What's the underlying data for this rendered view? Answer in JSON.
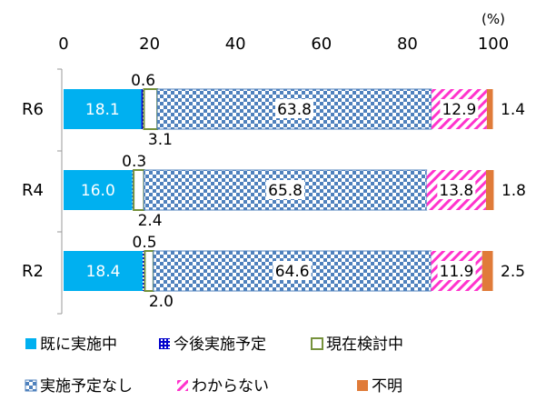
{
  "chart_data": {
    "type": "bar",
    "orientation": "horizontal",
    "stacked": true,
    "unit_label": "(%)",
    "xlim": [
      0,
      100
    ],
    "x_ticks": [
      0,
      20,
      40,
      60,
      80,
      100
    ],
    "grid": false,
    "legend_position": "bottom",
    "categories": [
      "R6",
      "R4",
      "R2"
    ],
    "series": [
      {
        "name": "既に実施中",
        "values": [
          18.1,
          16.0,
          18.4
        ],
        "color": "#00b0f0",
        "pattern": "solid"
      },
      {
        "name": "今後実施予定",
        "values": [
          0.6,
          0.3,
          0.5
        ],
        "color": "#0000cc",
        "pattern": "dots"
      },
      {
        "name": "現在検討中",
        "values": [
          3.1,
          2.4,
          2.0
        ],
        "color": "#76923c",
        "pattern": "outline"
      },
      {
        "name": "実施予定なし",
        "values": [
          63.8,
          65.8,
          64.6
        ],
        "color": "#4f81bd",
        "pattern": "checker"
      },
      {
        "name": "わからない",
        "values": [
          12.9,
          13.8,
          11.9
        ],
        "color": "#ff33cc",
        "pattern": "diagonal"
      },
      {
        "name": "不明",
        "values": [
          1.4,
          1.8,
          2.5
        ],
        "color": "#e07b39",
        "pattern": "solid"
      }
    ],
    "value_labels": {
      "既に実施中": [
        "18.1",
        "16.0",
        "18.4"
      ],
      "今後実施予定": [
        "0.6",
        "0.3",
        "0.5"
      ],
      "現在検討中": [
        "3.1",
        "2.4",
        "2.0"
      ],
      "実施予定なし": [
        "63.8",
        "65.8",
        "64.6"
      ],
      "わからない": [
        "12.9",
        "13.8",
        "11.9"
      ],
      "不明": [
        "1.4",
        "1.8",
        "2.5"
      ]
    }
  }
}
